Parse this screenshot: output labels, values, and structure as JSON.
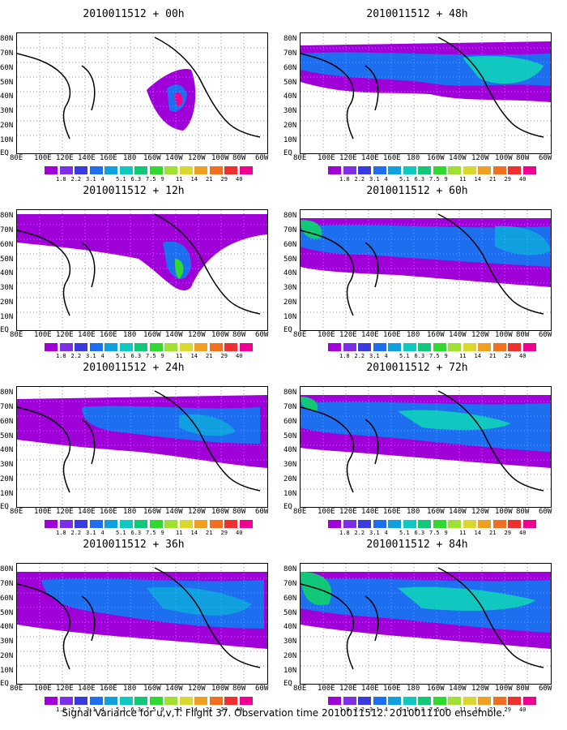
{
  "panels": [
    {
      "title": "2010011512 + 00h"
    },
    {
      "title": "2010011512 + 48h"
    },
    {
      "title": "2010011512 + 12h"
    },
    {
      "title": "2010011512 + 60h"
    },
    {
      "title": "2010011512 + 24h"
    },
    {
      "title": "2010011512 + 72h"
    },
    {
      "title": "2010011512 + 36h"
    },
    {
      "title": "2010011512 + 84h"
    }
  ],
  "lat_labels": [
    "80N",
    "70N",
    "60N",
    "50N",
    "40N",
    "30N",
    "20N",
    "10N",
    "EQ"
  ],
  "lon_labels": [
    "80E",
    "100E",
    "120E",
    "140E",
    "160E",
    "180",
    "160W",
    "140W",
    "120W",
    "100W",
    "80W",
    "60W"
  ],
  "colorbar": {
    "labels": [
      "1.8",
      "2.2",
      "3.1",
      "4",
      "5.1",
      "6.3",
      "7.5",
      "9",
      "11",
      "14",
      "21",
      "29",
      "40"
    ],
    "colors": [
      "#a000d8",
      "#7c2ee8",
      "#3a3ae0",
      "#1e6ef0",
      "#10a0e0",
      "#10c8c0",
      "#10c878",
      "#30d830",
      "#a0e030",
      "#d8d830",
      "#f0a020",
      "#f07020",
      "#f03030",
      "#f00090"
    ]
  },
  "caption": "Signal Variance for u,v,T. Flight 37. Observation time 2010011512. 2010011100 ensemble."
}
